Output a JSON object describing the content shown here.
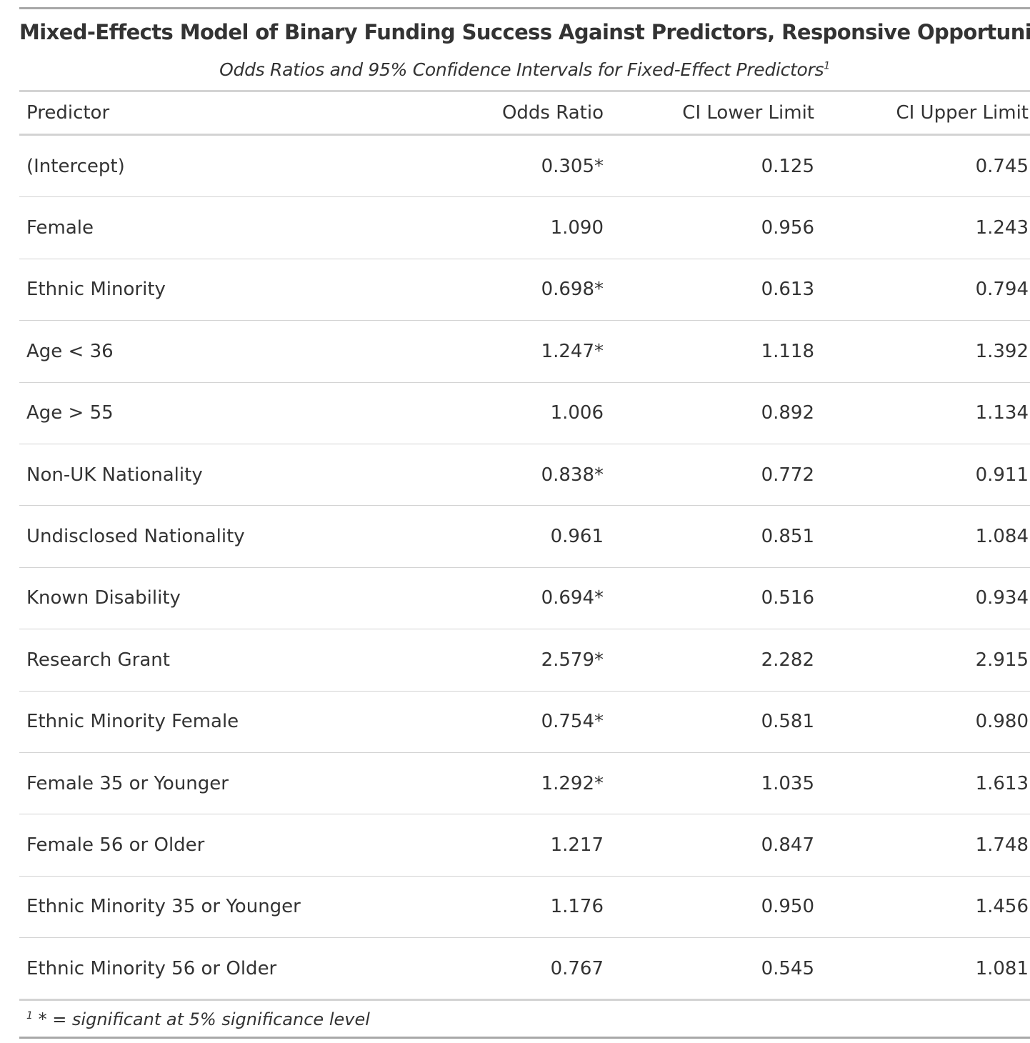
{
  "table": {
    "title": "Mixed-Effects Model of Binary Funding Success Against Predictors, Responsive Opportunities",
    "subtitle": "Odds Ratios and 95% Confidence Intervals for Fixed-Effect Predictors",
    "subtitle_marker": "1",
    "columns": {
      "predictor": "Predictor",
      "odds_ratio": "Odds Ratio",
      "ci_lower": "CI Lower Limit",
      "ci_upper": "CI Upper Limit"
    },
    "rows": [
      {
        "predictor": "(Intercept)",
        "odds_ratio": "0.305*",
        "ci_lower": "0.125",
        "ci_upper": "0.745"
      },
      {
        "predictor": "Female",
        "odds_ratio": "1.090",
        "ci_lower": "0.956",
        "ci_upper": "1.243"
      },
      {
        "predictor": "Ethnic Minority",
        "odds_ratio": "0.698*",
        "ci_lower": "0.613",
        "ci_upper": "0.794"
      },
      {
        "predictor": "Age < 36",
        "odds_ratio": "1.247*",
        "ci_lower": "1.118",
        "ci_upper": "1.392"
      },
      {
        "predictor": "Age > 55",
        "odds_ratio": "1.006",
        "ci_lower": "0.892",
        "ci_upper": "1.134"
      },
      {
        "predictor": "Non-UK Nationality",
        "odds_ratio": "0.838*",
        "ci_lower": "0.772",
        "ci_upper": "0.911"
      },
      {
        "predictor": "Undisclosed Nationality",
        "odds_ratio": "0.961",
        "ci_lower": "0.851",
        "ci_upper": "1.084"
      },
      {
        "predictor": "Known Disability",
        "odds_ratio": "0.694*",
        "ci_lower": "0.516",
        "ci_upper": "0.934"
      },
      {
        "predictor": "Research Grant",
        "odds_ratio": "2.579*",
        "ci_lower": "2.282",
        "ci_upper": "2.915"
      },
      {
        "predictor": "Ethnic Minority Female",
        "odds_ratio": "0.754*",
        "ci_lower": "0.581",
        "ci_upper": "0.980"
      },
      {
        "predictor": "Female 35 or Younger",
        "odds_ratio": "1.292*",
        "ci_lower": "1.035",
        "ci_upper": "1.613"
      },
      {
        "predictor": "Female 56 or Older",
        "odds_ratio": "1.217",
        "ci_lower": "0.847",
        "ci_upper": "1.748"
      },
      {
        "predictor": "Ethnic Minority 35 or Younger",
        "odds_ratio": "1.176",
        "ci_lower": "0.950",
        "ci_upper": "1.456"
      },
      {
        "predictor": "Ethnic Minority 56 or Older",
        "odds_ratio": "0.767",
        "ci_lower": "0.545",
        "ci_upper": "1.081"
      }
    ],
    "footnote_marker": "1",
    "footnote": "* = significant at 5% significance level"
  }
}
